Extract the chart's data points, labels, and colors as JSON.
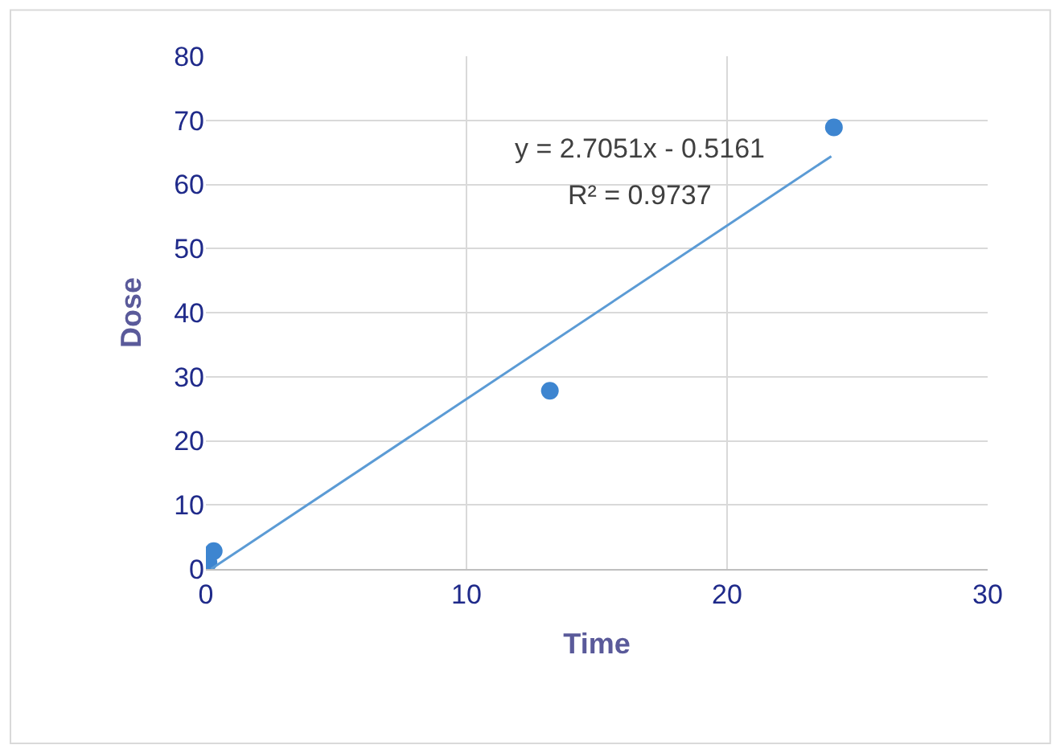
{
  "chart_data": {
    "type": "scatter",
    "xlabel": "Time",
    "ylabel": "Dose",
    "series": [
      {
        "color": "#3d85d0",
        "x": [
          0.1,
          0.3,
          13.2,
          24.1
        ],
        "values": [
          1,
          2.8,
          27.8,
          68.9
        ],
        "marker": "circle"
      },
      {
        "type": "line",
        "color": "#5b9bd5",
        "x": [
          0.2,
          24
        ],
        "values": [
          0,
          64.4
        ],
        "marker": "none",
        "line_style": "solid"
      }
    ],
    "annotations": [
      "y = 2.7051x - 0.5161",
      "R² = 0.9737"
    ],
    "xlim": [
      0,
      30
    ],
    "xticks": [
      0,
      10,
      20,
      30
    ],
    "ylim": [
      0,
      80
    ],
    "yticks": [
      0,
      10,
      20,
      30,
      40,
      50,
      60,
      70,
      80
    ],
    "grid": true
  }
}
